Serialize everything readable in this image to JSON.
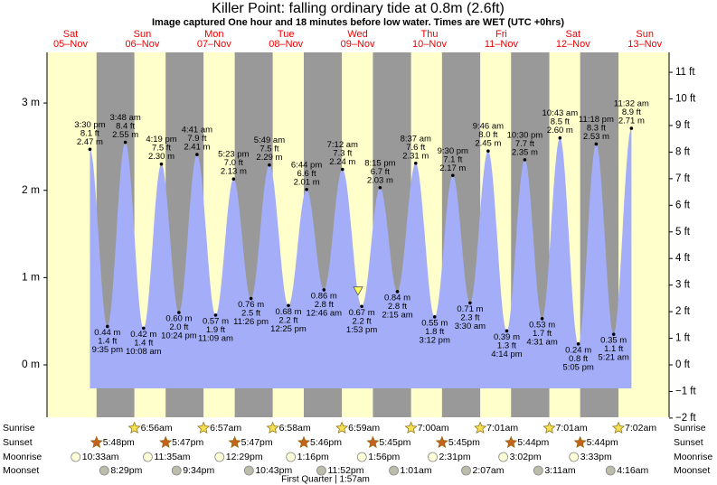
{
  "chart_data": {
    "type": "tide",
    "title": "Killer Point: falling  ordinary tide at 0.8m (2.6ft)",
    "subtitle": "Image captured One hour and 18 minutes before low water. Times are WET (UTC +0hrs)",
    "days": {
      "names": [
        "Sat",
        "Sun",
        "Mon",
        "Tue",
        "Wed",
        "Thu",
        "Fri",
        "Sat",
        "Sun"
      ],
      "dates": [
        "05–Nov",
        "06–Nov",
        "07–Nov",
        "08–Nov",
        "09–Nov",
        "10–Nov",
        "11–Nov",
        "12–Nov",
        "13–Nov"
      ],
      "color": "#ee0000"
    },
    "xlim": [
      0.6,
      216.6
    ],
    "ylim": [
      -0.6,
      3.58
    ],
    "yticks": [
      {
        "value": 0,
        "label": "0 m"
      },
      {
        "value": 1,
        "label": "1 m"
      },
      {
        "value": 2,
        "label": "2 m"
      },
      {
        "value": 3,
        "label": "3 m"
      }
    ],
    "y2lim": [
      -1.97,
      11.75
    ],
    "y2ticks": [
      {
        "value": -2,
        "label": "−2 ft"
      },
      {
        "value": -1,
        "label": "−1 ft"
      },
      {
        "value": 0,
        "label": "0 ft"
      },
      {
        "value": 1,
        "label": "1 ft"
      },
      {
        "value": 2,
        "label": "2 ft"
      },
      {
        "value": 3,
        "label": "3 ft"
      },
      {
        "value": 4,
        "label": "4 ft"
      },
      {
        "value": 5,
        "label": "5 ft"
      },
      {
        "value": 6,
        "label": "6 ft"
      },
      {
        "value": 7,
        "label": "7 ft"
      },
      {
        "value": 8,
        "label": "8 ft"
      },
      {
        "value": 9,
        "label": "9 ft"
      },
      {
        "value": 10,
        "label": "10 ft"
      },
      {
        "value": 11,
        "label": "11 ft"
      }
    ],
    "tide": {
      "color": "#a4aef8",
      "times": [
        "3:30 pm",
        "9:35 pm",
        "3:48 am",
        "10:08 am",
        "4:19 pm",
        "10:24 pm",
        "4:41 am",
        "11:09 am",
        "5:23 pm",
        "11:26 pm",
        "5:49 am",
        "12:25 pm",
        "6:44 pm",
        "12:46 am",
        "7:12 am",
        "1:53 pm",
        "8:15 pm",
        "2:15 am",
        "8:37 am",
        "3:12 pm",
        "9:30 pm",
        "3:30 am",
        "9:46 am",
        "4:14 pm",
        "10:30 pm",
        "4:31 am",
        "10:43 am",
        "5:05 pm",
        "11:18 pm",
        "5:21 am",
        "11:32 am"
      ],
      "values": [
        2.47,
        0.44,
        2.55,
        0.42,
        2.3,
        0.6,
        2.41,
        0.57,
        2.13,
        0.76,
        2.29,
        0.68,
        2.01,
        0.86,
        2.24,
        0.67,
        2.03,
        0.84,
        2.31,
        0.55,
        2.17,
        0.71,
        2.45,
        0.39,
        2.35,
        0.53,
        2.6,
        0.24,
        2.53,
        0.35,
        2.71
      ],
      "value_labels": [
        "2.47 m",
        "0.44 m",
        "2.55 m",
        "0.42 m",
        "2.30 m",
        "0.60 m",
        "2.41 m",
        "0.57 m",
        "2.13 m",
        "0.76 m",
        "2.29 m",
        "0.68 m",
        "2.01 m",
        "0.86 m",
        "2.24 m",
        "0.67 m",
        "2.03 m",
        "0.84 m",
        "2.31 m",
        "0.55 m",
        "2.17 m",
        "0.71 m",
        "2.45 m",
        "0.39 m",
        "2.35 m",
        "0.53 m",
        "2.60 m",
        "0.24 m",
        "2.53 m",
        "0.35 m",
        "2.71 m"
      ],
      "ft_labels": [
        "8.1 ft",
        "1.4 ft",
        "8.4 ft",
        "1.4 ft",
        "7.5 ft",
        "2.0 ft",
        "7.9 ft",
        "1.9 ft",
        "7.0 ft",
        "2.5 ft",
        "7.5 ft",
        "2.2 ft",
        "6.6 ft",
        "2.8 ft",
        "7.3 ft",
        "2.2 ft",
        "6.7 ft",
        "2.8 ft",
        "7.6 ft",
        "1.8 ft",
        "7.1 ft",
        "2.3 ft",
        "8.0 ft",
        "1.3 ft",
        "7.7 ft",
        "1.7 ft",
        "8.5 ft",
        "0.8 ft",
        "8.3 ft",
        "1.1 ft",
        "8.9 ft"
      ]
    },
    "marker": {
      "value": 0.8,
      "hour": 108.6,
      "color": "#ffff55"
    },
    "day_color": "#ffffcc",
    "night_color": "#999999",
    "rows": [
      {
        "name": "Sunrise",
        "icon": "star",
        "color": "#f2e050",
        "times": [
          null,
          "6:56am",
          "6:57am",
          "6:58am",
          "6:59am",
          "7:00am",
          "7:01am",
          "7:01am",
          "7:02am"
        ]
      },
      {
        "name": "Sunset",
        "icon": "star",
        "color": "#c8611e",
        "times": [
          "5:48pm",
          "5:47pm",
          "5:47pm",
          "5:46pm",
          "5:45pm",
          "5:45pm",
          "5:44pm",
          "5:44pm",
          null
        ]
      },
      {
        "name": "Moonrise",
        "icon": "circle",
        "color": "#ffffd8",
        "times": [
          "10:33am",
          "11:35am",
          "12:29pm",
          "1:16pm",
          "1:56pm",
          "2:31pm",
          "3:02pm",
          "3:33pm",
          null
        ]
      },
      {
        "name": "Moonset",
        "icon": "circle",
        "color": "#bdbcaa",
        "times": [
          "8:29pm",
          "9:34pm",
          "10:43pm",
          "11:52pm",
          null,
          "1:01am",
          "2:07am",
          "3:11am",
          "4:16am"
        ]
      }
    ],
    "moon_phase": "First Quarter | 1:57am"
  }
}
